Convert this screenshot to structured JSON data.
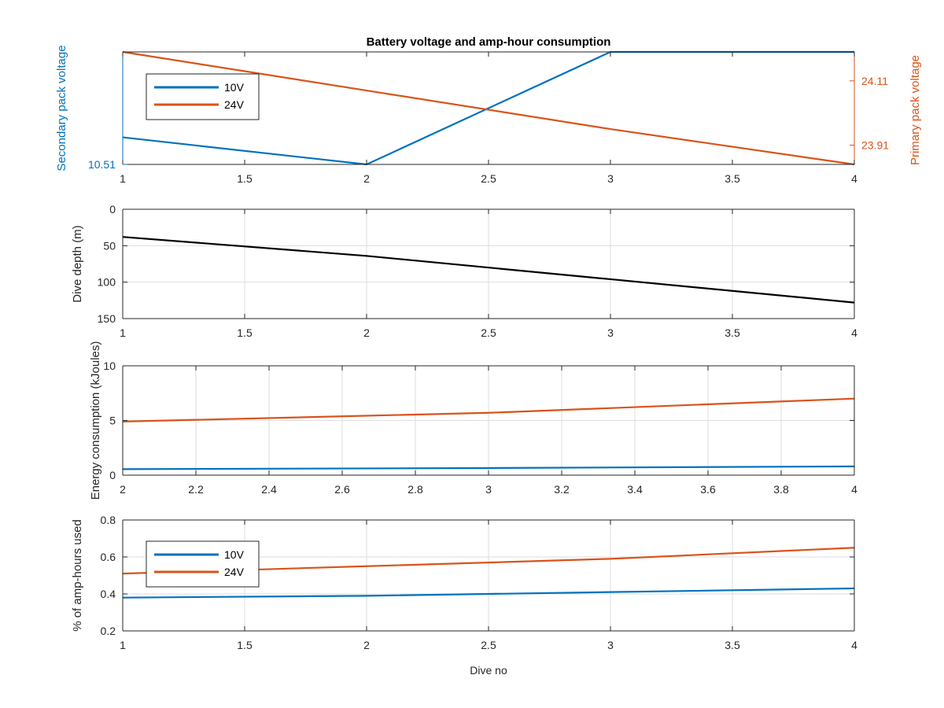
{
  "figure_title": "Battery voltage and amp-hour consumption",
  "colors": {
    "blue": "#0072BD",
    "orange": "#D95319",
    "black": "#000000",
    "grid": "#dedede",
    "axis": "#262626"
  },
  "chart_data": [
    {
      "type": "line",
      "title": "Battery voltage and amp-hour consumption",
      "xlabel": "",
      "ylabel": "Secondary pack voltage",
      "ylabel_right": "Primary pack voltage",
      "xlim": [
        1,
        4
      ],
      "xticks": [
        1,
        1.5,
        2,
        2.5,
        3,
        3.5,
        4
      ],
      "ylim": [
        10.51,
        10.564
      ],
      "yticks": [
        10.51
      ],
      "ylim_right": [
        23.85,
        24.2
      ],
      "yticks_right": [
        23.91,
        24.11
      ],
      "grid": false,
      "legend": {
        "placement": "top-left",
        "entries": [
          "10V",
          "24V"
        ]
      },
      "series": [
        {
          "name": "10V",
          "axis": "left",
          "color": "blue",
          "x": [
            1,
            2,
            3,
            4
          ],
          "values": [
            10.523,
            10.51,
            10.564,
            10.564
          ]
        },
        {
          "name": "24V",
          "axis": "right",
          "color": "orange",
          "x": [
            1,
            2,
            3,
            4
          ],
          "values": [
            24.2,
            24.08,
            23.96,
            23.85
          ]
        }
      ]
    },
    {
      "type": "line",
      "title": "",
      "xlabel": "",
      "ylabel": "Dive depth (m)",
      "xlim": [
        1,
        4
      ],
      "xticks": [
        1,
        1.5,
        2,
        2.5,
        3,
        3.5,
        4
      ],
      "ylim": [
        0,
        150
      ],
      "yticks": [
        0,
        50,
        100,
        150
      ],
      "yreverse": true,
      "grid": true,
      "series": [
        {
          "color": "black",
          "x": [
            1,
            2,
            3,
            4
          ],
          "values": [
            38,
            64,
            96,
            128
          ]
        }
      ]
    },
    {
      "type": "line",
      "title": "",
      "xlabel": "",
      "ylabel": "Energy consumption (kJoules)",
      "xlim": [
        2,
        4
      ],
      "xticks": [
        2,
        2.2,
        2.4,
        2.6,
        2.8,
        3,
        3.2,
        3.4,
        3.6,
        3.8,
        4
      ],
      "ylim": [
        0,
        10
      ],
      "yticks": [
        0,
        5,
        10
      ],
      "grid": true,
      "series": [
        {
          "color": "orange",
          "x": [
            2,
            3,
            4
          ],
          "values": [
            4.9,
            5.7,
            7.0
          ]
        },
        {
          "color": "blue",
          "x": [
            2,
            3,
            4
          ],
          "values": [
            0.55,
            0.65,
            0.8
          ]
        }
      ]
    },
    {
      "type": "line",
      "title": "",
      "xlabel": "Dive no",
      "ylabel": "% of amp-hours used",
      "xlim": [
        1,
        4
      ],
      "xticks": [
        1,
        1.5,
        2,
        2.5,
        3,
        3.5,
        4
      ],
      "ylim": [
        0.2,
        0.8
      ],
      "yticks": [
        0.2,
        0.4,
        0.6,
        0.8
      ],
      "grid": true,
      "legend": {
        "placement": "left",
        "entries": [
          "10V",
          "24V"
        ]
      },
      "series": [
        {
          "name": "24V",
          "color": "orange",
          "x": [
            1,
            2,
            3,
            4
          ],
          "values": [
            0.51,
            0.55,
            0.59,
            0.65
          ]
        },
        {
          "name": "10V",
          "color": "blue",
          "x": [
            1,
            2,
            3,
            4
          ],
          "values": [
            0.38,
            0.39,
            0.41,
            0.43
          ]
        }
      ]
    }
  ]
}
